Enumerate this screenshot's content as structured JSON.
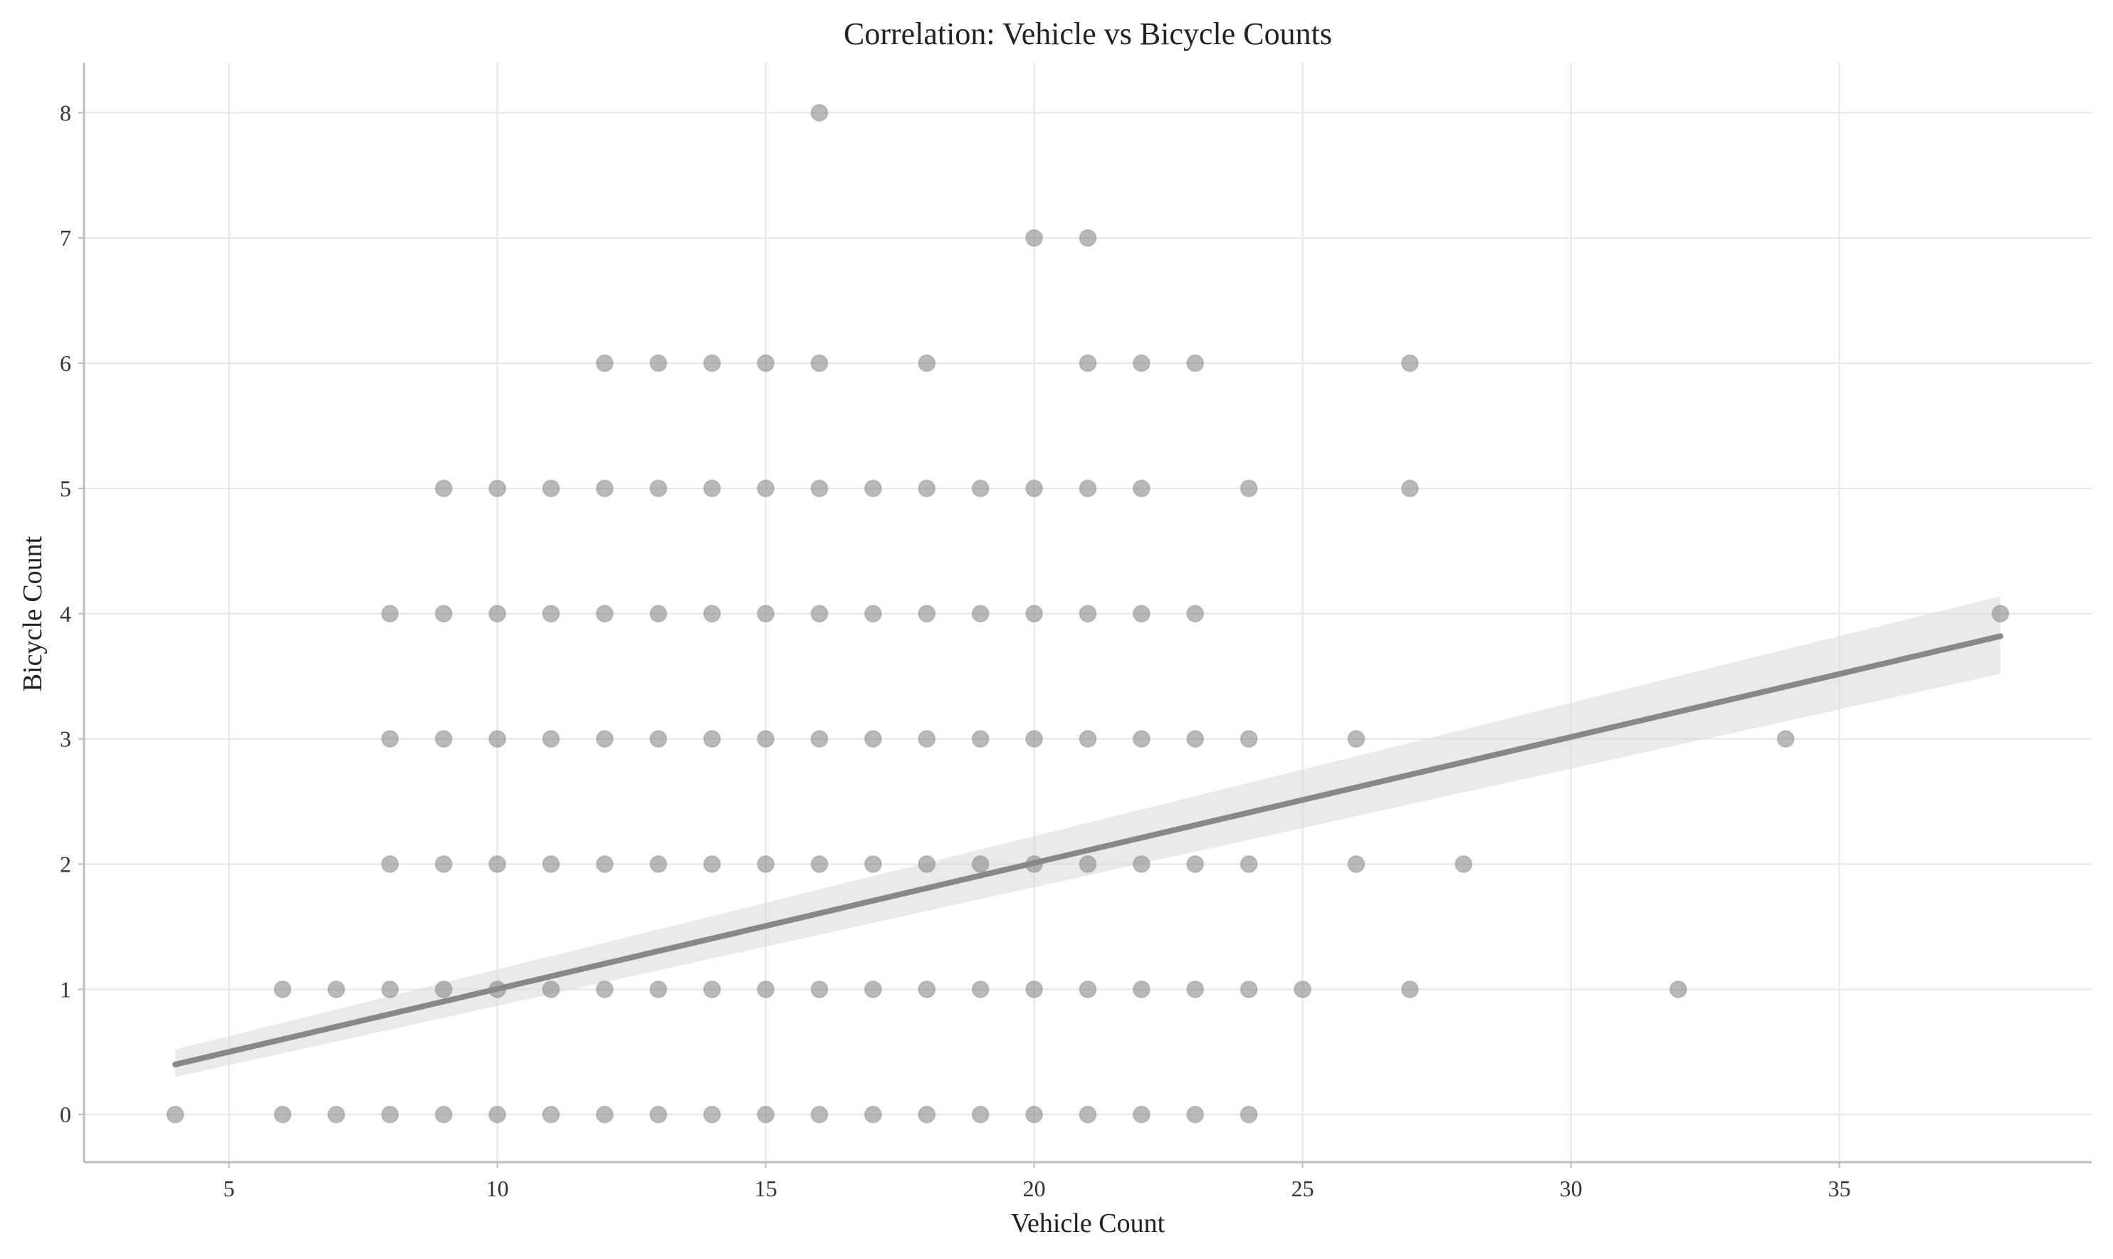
{
  "chart_data": {
    "type": "scatter",
    "title": "Correlation: Vehicle vs Bicycle Counts",
    "xlabel": "Vehicle Count",
    "ylabel": "Bicycle Count",
    "xlim": [
      2.3,
      39.7
    ],
    "ylim": [
      -0.38,
      8.4
    ],
    "xticks": [
      5,
      10,
      15,
      20,
      25,
      30,
      35
    ],
    "yticks": [
      0,
      1,
      2,
      3,
      4,
      5,
      6,
      7,
      8
    ],
    "grid": true,
    "colors": {
      "point": "#808080",
      "line": "#888888",
      "band": "#d9d9d9"
    },
    "points": [
      [
        4,
        0
      ],
      [
        6,
        0
      ],
      [
        7,
        0
      ],
      [
        8,
        0
      ],
      [
        9,
        0
      ],
      [
        10,
        0
      ],
      [
        11,
        0
      ],
      [
        12,
        0
      ],
      [
        13,
        0
      ],
      [
        14,
        0
      ],
      [
        15,
        0
      ],
      [
        16,
        0
      ],
      [
        17,
        0
      ],
      [
        18,
        0
      ],
      [
        19,
        0
      ],
      [
        20,
        0
      ],
      [
        21,
        0
      ],
      [
        22,
        0
      ],
      [
        23,
        0
      ],
      [
        24,
        0
      ],
      [
        6,
        1
      ],
      [
        7,
        1
      ],
      [
        8,
        1
      ],
      [
        9,
        1
      ],
      [
        10,
        1
      ],
      [
        11,
        1
      ],
      [
        12,
        1
      ],
      [
        13,
        1
      ],
      [
        14,
        1
      ],
      [
        15,
        1
      ],
      [
        16,
        1
      ],
      [
        17,
        1
      ],
      [
        18,
        1
      ],
      [
        19,
        1
      ],
      [
        20,
        1
      ],
      [
        21,
        1
      ],
      [
        22,
        1
      ],
      [
        23,
        1
      ],
      [
        24,
        1
      ],
      [
        25,
        1
      ],
      [
        27,
        1
      ],
      [
        32,
        1
      ],
      [
        8,
        2
      ],
      [
        9,
        2
      ],
      [
        10,
        2
      ],
      [
        11,
        2
      ],
      [
        12,
        2
      ],
      [
        13,
        2
      ],
      [
        14,
        2
      ],
      [
        15,
        2
      ],
      [
        16,
        2
      ],
      [
        17,
        2
      ],
      [
        18,
        2
      ],
      [
        19,
        2
      ],
      [
        20,
        2
      ],
      [
        21,
        2
      ],
      [
        22,
        2
      ],
      [
        23,
        2
      ],
      [
        24,
        2
      ],
      [
        26,
        2
      ],
      [
        28,
        2
      ],
      [
        8,
        3
      ],
      [
        9,
        3
      ],
      [
        10,
        3
      ],
      [
        11,
        3
      ],
      [
        12,
        3
      ],
      [
        13,
        3
      ],
      [
        14,
        3
      ],
      [
        15,
        3
      ],
      [
        16,
        3
      ],
      [
        17,
        3
      ],
      [
        18,
        3
      ],
      [
        19,
        3
      ],
      [
        20,
        3
      ],
      [
        21,
        3
      ],
      [
        22,
        3
      ],
      [
        23,
        3
      ],
      [
        24,
        3
      ],
      [
        26,
        3
      ],
      [
        34,
        3
      ],
      [
        8,
        4
      ],
      [
        9,
        4
      ],
      [
        10,
        4
      ],
      [
        11,
        4
      ],
      [
        12,
        4
      ],
      [
        13,
        4
      ],
      [
        14,
        4
      ],
      [
        15,
        4
      ],
      [
        16,
        4
      ],
      [
        17,
        4
      ],
      [
        18,
        4
      ],
      [
        19,
        4
      ],
      [
        20,
        4
      ],
      [
        21,
        4
      ],
      [
        22,
        4
      ],
      [
        23,
        4
      ],
      [
        38,
        4
      ],
      [
        9,
        5
      ],
      [
        10,
        5
      ],
      [
        11,
        5
      ],
      [
        12,
        5
      ],
      [
        13,
        5
      ],
      [
        14,
        5
      ],
      [
        15,
        5
      ],
      [
        16,
        5
      ],
      [
        17,
        5
      ],
      [
        18,
        5
      ],
      [
        19,
        5
      ],
      [
        20,
        5
      ],
      [
        21,
        5
      ],
      [
        22,
        5
      ],
      [
        24,
        5
      ],
      [
        27,
        5
      ],
      [
        12,
        6
      ],
      [
        13,
        6
      ],
      [
        14,
        6
      ],
      [
        15,
        6
      ],
      [
        16,
        6
      ],
      [
        18,
        6
      ],
      [
        21,
        6
      ],
      [
        22,
        6
      ],
      [
        23,
        6
      ],
      [
        27,
        6
      ],
      [
        20,
        7
      ],
      [
        21,
        7
      ],
      [
        16,
        8
      ]
    ],
    "regression": {
      "x_range": [
        4,
        38
      ],
      "y_start": 0.4,
      "y_end": 3.82,
      "ci_start": [
        0.3,
        0.52
      ],
      "ci_end": [
        3.52,
        4.14
      ]
    }
  }
}
